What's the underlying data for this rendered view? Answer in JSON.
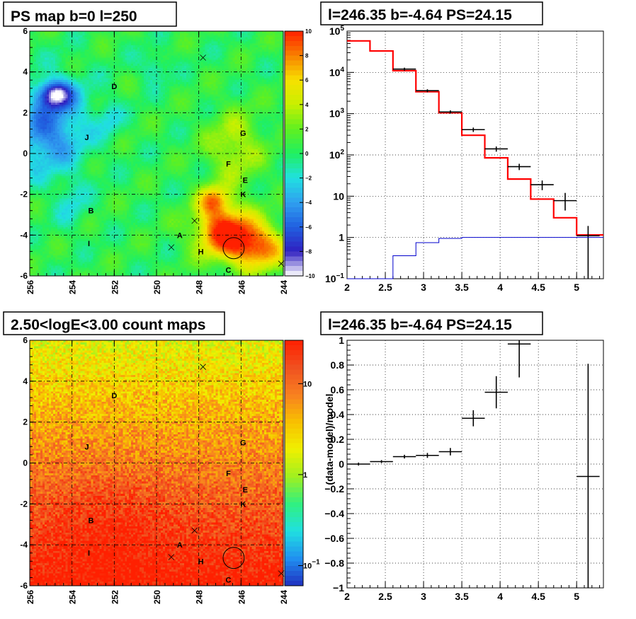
{
  "chart_data": [
    {
      "id": "ps_map",
      "type": "heatmap",
      "title": "PS map b=0 l=250",
      "x_ticks": [
        "256",
        "254",
        "252",
        "250",
        "248",
        "246",
        "244"
      ],
      "y_ticks": [
        "6",
        "4",
        "2",
        "0",
        "-2",
        "-4",
        "-6"
      ],
      "xlim": [
        256,
        244
      ],
      "ylim": [
        -6,
        6
      ],
      "colorbar": {
        "min": -10,
        "max": 10,
        "ticks": [
          "10",
          "8",
          "6",
          "4",
          "2",
          "0",
          "−2",
          "−4",
          "−6",
          "−8",
          "−10"
        ]
      },
      "grid": true,
      "colormap": [
        "#ffffff",
        "#3020c0",
        "#2060e0",
        "#30a0f0",
        "#20e0e0",
        "#20f060",
        "#60f020",
        "#c8f000",
        "#f8e000",
        "#f88000",
        "#ff2000"
      ],
      "labels": [
        {
          "text": "D",
          "l": 252.0,
          "b": 3.3
        },
        {
          "text": "J",
          "l": 253.3,
          "b": 0.8
        },
        {
          "text": "G",
          "l": 245.9,
          "b": 1.0
        },
        {
          "text": "F",
          "l": 246.6,
          "b": -0.5
        },
        {
          "text": "E",
          "l": 245.8,
          "b": -1.3
        },
        {
          "text": "K",
          "l": 245.9,
          "b": -2.0
        },
        {
          "text": "B",
          "l": 253.1,
          "b": -2.8
        },
        {
          "text": "A",
          "l": 248.9,
          "b": -4.0
        },
        {
          "text": "I",
          "l": 253.2,
          "b": -4.4
        },
        {
          "text": "H",
          "l": 247.9,
          "b": -4.8
        },
        {
          "text": "C",
          "l": 246.6,
          "b": -5.7
        }
      ],
      "markers": [
        {
          "l": 247.8,
          "b": 4.7
        },
        {
          "l": 248.2,
          "b": -3.3
        },
        {
          "l": 249.3,
          "b": -4.6
        },
        {
          "l": 244.1,
          "b": -5.4
        }
      ],
      "circle": {
        "l": 246.35,
        "b": -4.64,
        "r": 0.5
      }
    },
    {
      "id": "spectrum",
      "type": "line",
      "title": "l=246.35 b=-4.64 PS=24.15",
      "x_ticks": [
        "2",
        "2.5",
        "3",
        "3.5",
        "4",
        "4.5",
        "5"
      ],
      "xlim": [
        2,
        5.35
      ],
      "ylim": [
        0.1,
        100000
      ],
      "log_y": true,
      "grid": true,
      "y_ticks": [
        {
          "v": 100000,
          "base": "10",
          "exp": "5"
        },
        {
          "v": 10000,
          "base": "10",
          "exp": "4"
        },
        {
          "v": 1000,
          "base": "10",
          "exp": "3"
        },
        {
          "v": 100,
          "base": "10",
          "exp": "2"
        },
        {
          "v": 10,
          "base": "10",
          "exp": ""
        },
        {
          "v": 1,
          "base": "1",
          "exp": ""
        },
        {
          "v": 0.1,
          "base": "10",
          "exp": "−1"
        }
      ],
      "bin_edges": [
        2.0,
        2.3,
        2.6,
        2.9,
        3.2,
        3.5,
        3.8,
        4.1,
        4.4,
        4.7,
        5.0,
        5.3
      ],
      "series": [
        {
          "color": "#ff0000",
          "values": [
            58000,
            33000,
            11000,
            3400,
            1050,
            300,
            85,
            26,
            8.5,
            3.0,
            1.15
          ]
        },
        {
          "color": "#000000",
          "values": [
            null,
            null,
            12000,
            3600,
            1100,
            410,
            140,
            52,
            19,
            7.8,
            1.1
          ],
          "err_lo": [
            null,
            null,
            11000,
            3300,
            1000,
            360,
            120,
            43,
            14,
            4.5,
            0.1
          ],
          "err_hi": [
            null,
            null,
            13000,
            3900,
            1200,
            460,
            160,
            61,
            24,
            12,
            1.9
          ]
        },
        {
          "color": "#0000cc",
          "values": [
            0.1,
            0.1,
            0.36,
            0.75,
            0.95,
            1.0,
            1.0,
            1.0,
            1.0,
            1.0,
            1.0
          ]
        }
      ]
    },
    {
      "id": "count_map",
      "type": "heatmap",
      "title": "2.50<logE<3.00 count maps",
      "x_ticks": [
        "256",
        "254",
        "252",
        "250",
        "248",
        "246",
        "244"
      ],
      "y_ticks": [
        "6",
        "4",
        "2",
        "0",
        "-2",
        "-4",
        "-6"
      ],
      "xlim": [
        256,
        244
      ],
      "ylim": [
        -6,
        6
      ],
      "log_z": true,
      "colorbar": {
        "ticks": [
          {
            "v": 10,
            "base": "10",
            "exp": ""
          },
          {
            "v": 1,
            "base": "1",
            "exp": ""
          },
          {
            "v": 0.1,
            "base": "10",
            "exp": "−1"
          }
        ]
      },
      "grid": true,
      "colormap": [
        "#2030c0",
        "#2090f0",
        "#20e0e0",
        "#30f080",
        "#a0f020",
        "#f0f000",
        "#f8c000",
        "#f88020",
        "#f05020",
        "#ff2000"
      ],
      "labels": [
        {
          "text": "D",
          "l": 252.0,
          "b": 3.3
        },
        {
          "text": "J",
          "l": 253.3,
          "b": 0.8
        },
        {
          "text": "G",
          "l": 245.9,
          "b": 1.0
        },
        {
          "text": "F",
          "l": 246.6,
          "b": -0.5
        },
        {
          "text": "E",
          "l": 245.8,
          "b": -1.3
        },
        {
          "text": "K",
          "l": 245.9,
          "b": -2.0
        },
        {
          "text": "B",
          "l": 253.1,
          "b": -2.8
        },
        {
          "text": "A",
          "l": 248.9,
          "b": -4.0
        },
        {
          "text": "I",
          "l": 253.2,
          "b": -4.4
        },
        {
          "text": "H",
          "l": 247.9,
          "b": -4.8
        },
        {
          "text": "C",
          "l": 246.6,
          "b": -5.7
        }
      ],
      "markers": [
        {
          "l": 247.8,
          "b": 4.7
        },
        {
          "l": 248.2,
          "b": -3.3
        },
        {
          "l": 249.3,
          "b": -4.6
        },
        {
          "l": 244.1,
          "b": -5.4
        }
      ],
      "circle": {
        "l": 246.35,
        "b": -4.64,
        "r": 0.5
      }
    },
    {
      "id": "residual",
      "type": "scatter",
      "title": "l=246.35 b=-4.64 PS=24.15",
      "ylabel": "(data-model)/model",
      "x_ticks": [
        "2",
        "2.5",
        "3",
        "3.5",
        "4",
        "4.5",
        "5"
      ],
      "y_ticks": [
        "1",
        "0.8",
        "0.6",
        "0.4",
        "0.2",
        "0",
        "−0.2",
        "−0.4",
        "−0.6",
        "−0.8",
        "−1"
      ],
      "xlim": [
        2,
        5.35
      ],
      "ylim": [
        -1,
        1
      ],
      "grid": true,
      "points": [
        {
          "x": 2.15,
          "y": 0.0,
          "dx": 0.15,
          "dy": 0.012
        },
        {
          "x": 2.45,
          "y": 0.02,
          "dx": 0.15,
          "dy": 0.012
        },
        {
          "x": 2.75,
          "y": 0.06,
          "dx": 0.15,
          "dy": 0.015
        },
        {
          "x": 3.05,
          "y": 0.07,
          "dx": 0.15,
          "dy": 0.02
        },
        {
          "x": 3.35,
          "y": 0.1,
          "dx": 0.15,
          "dy": 0.03
        },
        {
          "x": 3.65,
          "y": 0.37,
          "dx": 0.15,
          "dy": 0.065
        },
        {
          "x": 3.95,
          "y": 0.58,
          "dx": 0.15,
          "dy": 0.13
        },
        {
          "x": 4.25,
          "y": 0.97,
          "dx": 0.15,
          "dy": 0.27
        },
        {
          "x": 5.15,
          "y": -0.1,
          "dx": 0.15,
          "dy": 0.91
        }
      ]
    }
  ]
}
